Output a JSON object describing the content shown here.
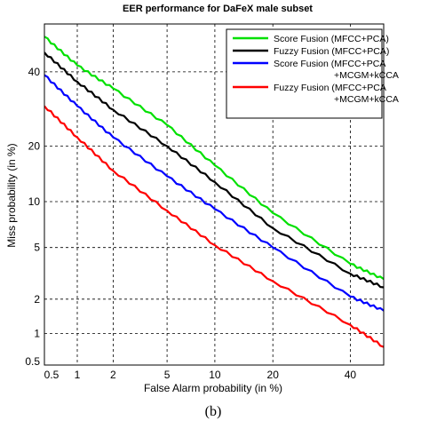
{
  "chart_data": {
    "type": "line",
    "title": "EER performance for DaFeX male subset",
    "xlabel": "False Alarm probability (in %)",
    "ylabel": "Miss probability (in %)",
    "x_scale": "normal-deviate",
    "y_scale": "normal-deviate",
    "xlim": [
      0.5,
      50
    ],
    "ylim": [
      0.5,
      55
    ],
    "x_ticks": [
      "0.5",
      "1",
      "2",
      "5",
      "10",
      "20",
      "40"
    ],
    "x_tick_values": [
      0.5,
      1,
      2,
      5,
      10,
      20,
      40
    ],
    "y_ticks": [
      "0.5",
      "1",
      "2",
      "5",
      "10",
      "20",
      "40"
    ],
    "y_tick_values": [
      0.5,
      1,
      2,
      5,
      10,
      20,
      40
    ],
    "grid": "dashed",
    "legend_position": "top-right",
    "series": [
      {
        "name": "Score Fusion (MFCC+PCA)",
        "legend_lines": [
          "Score Fusion (MFCC+PCA)"
        ],
        "color": "#00e000",
        "x": [
          0.5,
          1,
          2,
          5,
          10,
          20,
          40,
          50
        ],
        "y": [
          51,
          42,
          35,
          25,
          16,
          8.5,
          3.8,
          2.9
        ]
      },
      {
        "name": "Fuzzy Fusion (MFCC+PCA)",
        "legend_lines": [
          "Fuzzy Fusion (MFCC+PCA)"
        ],
        "color": "#000000",
        "x": [
          0.5,
          1,
          2,
          5,
          10,
          20,
          40,
          50
        ],
        "y": [
          46,
          37,
          29,
          20,
          13,
          6.8,
          3.2,
          2.5
        ]
      },
      {
        "name": "Score Fusion (MFCC+PCA +MCGM+kCCA",
        "legend_lines": [
          "Score Fusion (MFCC+PCA",
          "+MCGM+kCCA"
        ],
        "color": "#0000ff",
        "x": [
          0.5,
          1,
          2,
          5,
          10,
          20,
          40,
          50
        ],
        "y": [
          39,
          30,
          22,
          14,
          9,
          5,
          2.1,
          1.6
        ]
      },
      {
        "name": "Fuzzy Fusion (MFCC+PCA +MCGM+kCCA",
        "legend_lines": [
          "Fuzzy Fusion (MFCC+PCA",
          "+MCGM+kCCA"
        ],
        "color": "#ff0000",
        "x": [
          0.5,
          1,
          2,
          5,
          10,
          20,
          40,
          50
        ],
        "y": [
          30,
          22,
          15,
          8.8,
          5.2,
          2.8,
          1.2,
          0.75
        ]
      }
    ]
  },
  "caption": "(b)"
}
